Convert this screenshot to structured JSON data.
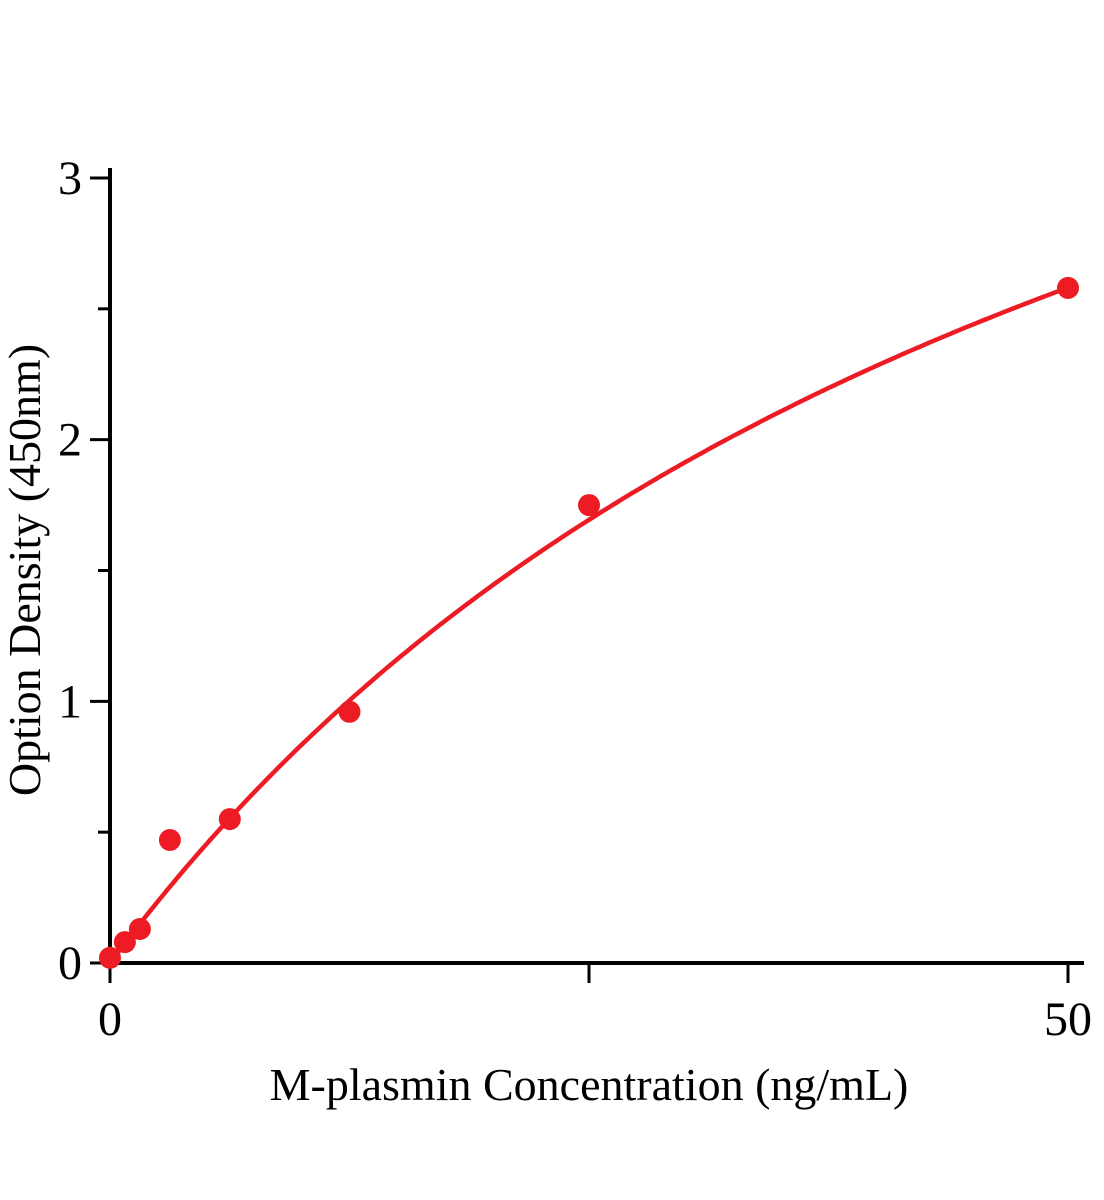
{
  "figure": {
    "background": "#ffffff"
  },
  "chart_data": {
    "type": "scatter",
    "xlabel": "M-plasmin Concentration (ng/mL)",
    "ylabel": "Option Density (450nm)",
    "xlim": [
      0,
      50
    ],
    "ylim": [
      0,
      3
    ],
    "grid": false,
    "legend": false,
    "axis_color": "#000000",
    "x_ticks": [
      {
        "value": 0,
        "label": "0"
      },
      {
        "value": 25,
        "label": ""
      },
      {
        "value": 50,
        "label": "50"
      }
    ],
    "y_ticks": [
      {
        "value": 0,
        "label": "0"
      },
      {
        "value": 1,
        "label": "1"
      },
      {
        "value": 2,
        "label": "2"
      },
      {
        "value": 3,
        "label": "3"
      }
    ],
    "y_minor_ticks": [
      0.5,
      1.5,
      2.5
    ],
    "series": [
      {
        "color": "#ed1c24",
        "points": [
          {
            "x": 0,
            "y": 0.02
          },
          {
            "x": 0.78,
            "y": 0.08
          },
          {
            "x": 1.56,
            "y": 0.13
          },
          {
            "x": 3.125,
            "y": 0.47
          },
          {
            "x": 6.25,
            "y": 0.55
          },
          {
            "x": 12.5,
            "y": 0.96
          },
          {
            "x": 25,
            "y": 1.75
          },
          {
            "x": 50,
            "y": 2.58
          }
        ],
        "fit": {
          "model": "saturation",
          "vmax": 5.42,
          "km": 55
        }
      }
    ]
  }
}
